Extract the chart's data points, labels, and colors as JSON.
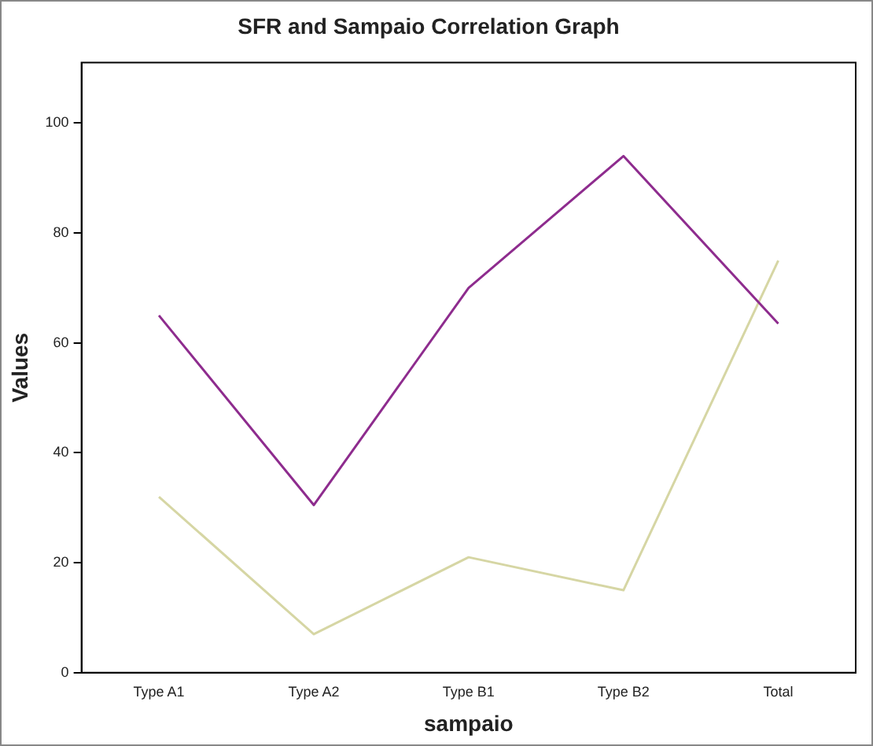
{
  "chart_data": {
    "type": "line",
    "title": "SFR and Sampaio Correlation Graph",
    "xlabel": "sampaio",
    "ylabel": "Values",
    "categories": [
      "Type A1",
      "Type A2",
      "Type B1",
      "Type B2",
      "Total"
    ],
    "series": [
      {
        "color": "#8e2c8e",
        "values": [
          65,
          30.5,
          70,
          94,
          63.5
        ]
      },
      {
        "color": "#d6d6a4",
        "values": [
          32,
          7,
          21,
          15,
          75
        ]
      }
    ],
    "ylim": [
      0,
      111
    ],
    "yticks": [
      0,
      20,
      40,
      60,
      80,
      100
    ],
    "grid": false,
    "legend": false,
    "marker": "none",
    "line_style": "solid"
  }
}
